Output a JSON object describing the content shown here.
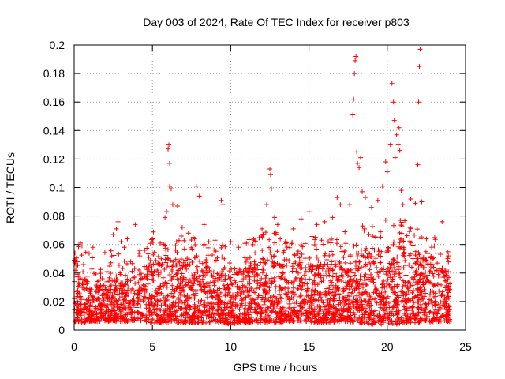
{
  "chart_data": {
    "type": "scatter",
    "title": "Day 003 of 2024, Rate Of TEC Index for receiver p803",
    "xlabel": "GPS time / hours",
    "ylabel": "ROTI / TECUs",
    "xlim": [
      0,
      25
    ],
    "ylim": [
      0,
      0.2
    ],
    "x_ticks": [
      0,
      5,
      10,
      15,
      20,
      25
    ],
    "x_tick_labels": [
      "0",
      "5",
      "10",
      "15",
      "20",
      "25"
    ],
    "y_ticks": [
      0,
      0.02,
      0.04,
      0.06,
      0.08,
      0.1,
      0.12,
      0.14,
      0.16,
      0.18,
      0.2
    ],
    "y_tick_labels": [
      "0",
      "0.02",
      "0.04",
      "0.06",
      "0.08",
      "0.1",
      "0.12",
      "0.14",
      "0.16",
      "0.18",
      "0.2"
    ],
    "grid": true,
    "marker": "+",
    "series_color": "#ff0000",
    "series": [
      {
        "name": "ROTI",
        "points": [
          [
            0.05,
            0.054
          ],
          [
            0.1,
            0.042
          ],
          [
            0.2,
            0.048
          ],
          [
            0.3,
            0.038
          ],
          [
            0.4,
            0.061
          ],
          [
            0.5,
            0.059
          ],
          [
            0.6,
            0.046
          ],
          [
            0.8,
            0.033
          ],
          [
            1.0,
            0.029
          ],
          [
            1.2,
            0.058
          ],
          [
            1.5,
            0.034
          ],
          [
            1.8,
            0.036
          ],
          [
            2.1,
            0.041
          ],
          [
            2.4,
            0.052
          ],
          [
            2.5,
            0.067
          ],
          [
            2.7,
            0.071
          ],
          [
            2.8,
            0.076
          ],
          [
            3.0,
            0.062
          ],
          [
            3.2,
            0.058
          ],
          [
            3.4,
            0.064
          ],
          [
            3.6,
            0.048
          ],
          [
            3.9,
            0.074
          ],
          [
            4.2,
            0.052
          ],
          [
            4.5,
            0.056
          ],
          [
            5.0,
            0.064
          ],
          [
            5.5,
            0.061
          ],
          [
            5.8,
            0.079
          ],
          [
            5.9,
            0.083
          ],
          [
            6.0,
            0.127
          ],
          [
            6.05,
            0.13
          ],
          [
            6.1,
            0.117
          ],
          [
            6.1,
            0.101
          ],
          [
            6.2,
            0.099
          ],
          [
            6.3,
            0.088
          ],
          [
            6.6,
            0.087
          ],
          [
            6.9,
            0.072
          ],
          [
            7.3,
            0.068
          ],
          [
            7.6,
            0.065
          ],
          [
            7.8,
            0.101
          ],
          [
            8.0,
            0.094
          ],
          [
            8.3,
            0.074
          ],
          [
            8.6,
            0.062
          ],
          [
            9.0,
            0.063
          ],
          [
            9.4,
            0.091
          ],
          [
            9.5,
            0.088
          ],
          [
            10.0,
            0.062
          ],
          [
            10.5,
            0.058
          ],
          [
            11.0,
            0.061
          ],
          [
            11.5,
            0.063
          ],
          [
            12.0,
            0.071
          ],
          [
            12.3,
            0.088
          ],
          [
            12.5,
            0.113
          ],
          [
            12.55,
            0.109
          ],
          [
            12.6,
            0.099
          ],
          [
            12.8,
            0.079
          ],
          [
            13.0,
            0.074
          ],
          [
            13.5,
            0.062
          ],
          [
            14.0,
            0.071
          ],
          [
            14.5,
            0.078
          ],
          [
            15.0,
            0.083
          ],
          [
            15.5,
            0.074
          ],
          [
            16.0,
            0.076
          ],
          [
            16.5,
            0.079
          ],
          [
            16.8,
            0.093
          ],
          [
            17.0,
            0.088
          ],
          [
            17.3,
            0.069
          ],
          [
            17.6,
            0.088
          ],
          [
            17.8,
            0.151
          ],
          [
            17.85,
            0.162
          ],
          [
            17.9,
            0.18
          ],
          [
            17.95,
            0.189
          ],
          [
            18.0,
            0.192
          ],
          [
            18.05,
            0.125
          ],
          [
            18.1,
            0.117
          ],
          [
            18.2,
            0.114
          ],
          [
            18.3,
            0.121
          ],
          [
            18.4,
            0.097
          ],
          [
            18.6,
            0.093
          ],
          [
            19.0,
            0.086
          ],
          [
            19.4,
            0.091
          ],
          [
            19.7,
            0.101
          ],
          [
            19.9,
            0.118
          ],
          [
            20.0,
            0.111
          ],
          [
            20.2,
            0.13
          ],
          [
            20.3,
            0.173
          ],
          [
            20.4,
            0.16
          ],
          [
            20.45,
            0.147
          ],
          [
            20.5,
            0.121
          ],
          [
            20.6,
            0.137
          ],
          [
            20.7,
            0.13
          ],
          [
            20.75,
            0.142
          ],
          [
            20.8,
            0.126
          ],
          [
            20.9,
            0.098
          ],
          [
            21.0,
            0.088
          ],
          [
            21.5,
            0.092
          ],
          [
            21.8,
            0.089
          ],
          [
            21.95,
            0.116
          ],
          [
            22.0,
            0.16
          ],
          [
            22.05,
            0.185
          ],
          [
            22.1,
            0.197
          ],
          [
            22.2,
            0.09
          ],
          [
            22.5,
            0.064
          ],
          [
            23.0,
            0.059
          ],
          [
            23.5,
            0.076
          ],
          [
            23.9,
            0.052
          ]
        ]
      }
    ],
    "band": {
      "description": "dense baseline of ROTI samples across the day",
      "x": [
        0,
        0.5,
        1,
        1.5,
        2,
        2.5,
        3,
        3.5,
        4,
        4.5,
        5,
        5.5,
        6,
        6.5,
        7,
        7.5,
        8,
        8.5,
        9,
        9.5,
        10,
        10.5,
        11,
        11.5,
        12,
        12.5,
        13,
        13.5,
        14,
        14.5,
        15,
        15.5,
        16,
        16.5,
        17,
        17.5,
        18,
        18.5,
        19,
        19.5,
        20,
        20.5,
        21,
        21.5,
        22,
        22.5,
        23,
        23.5,
        24
      ],
      "low": [
        0.006,
        0.005,
        0.006,
        0.006,
        0.006,
        0.006,
        0.006,
        0.006,
        0.007,
        0.006,
        0.005,
        0.005,
        0.005,
        0.005,
        0.005,
        0.005,
        0.005,
        0.005,
        0.006,
        0.005,
        0.004,
        0.005,
        0.005,
        0.005,
        0.005,
        0.005,
        0.005,
        0.006,
        0.006,
        0.006,
        0.006,
        0.005,
        0.005,
        0.005,
        0.006,
        0.006,
        0.005,
        0.005,
        0.004,
        0.004,
        0.004,
        0.004,
        0.005,
        0.005,
        0.005,
        0.005,
        0.006,
        0.006,
        0.006
      ],
      "high": [
        0.038,
        0.036,
        0.032,
        0.03,
        0.033,
        0.035,
        0.033,
        0.03,
        0.037,
        0.044,
        0.047,
        0.046,
        0.05,
        0.046,
        0.044,
        0.046,
        0.045,
        0.044,
        0.04,
        0.038,
        0.036,
        0.039,
        0.041,
        0.044,
        0.047,
        0.049,
        0.046,
        0.043,
        0.041,
        0.043,
        0.045,
        0.043,
        0.043,
        0.046,
        0.043,
        0.041,
        0.048,
        0.052,
        0.051,
        0.051,
        0.057,
        0.06,
        0.057,
        0.053,
        0.051,
        0.049,
        0.044,
        0.041,
        0.036
      ],
      "data_gaps": [
        [
          3.9,
          4.0
        ],
        [
          24.0,
          25.0
        ]
      ]
    }
  }
}
